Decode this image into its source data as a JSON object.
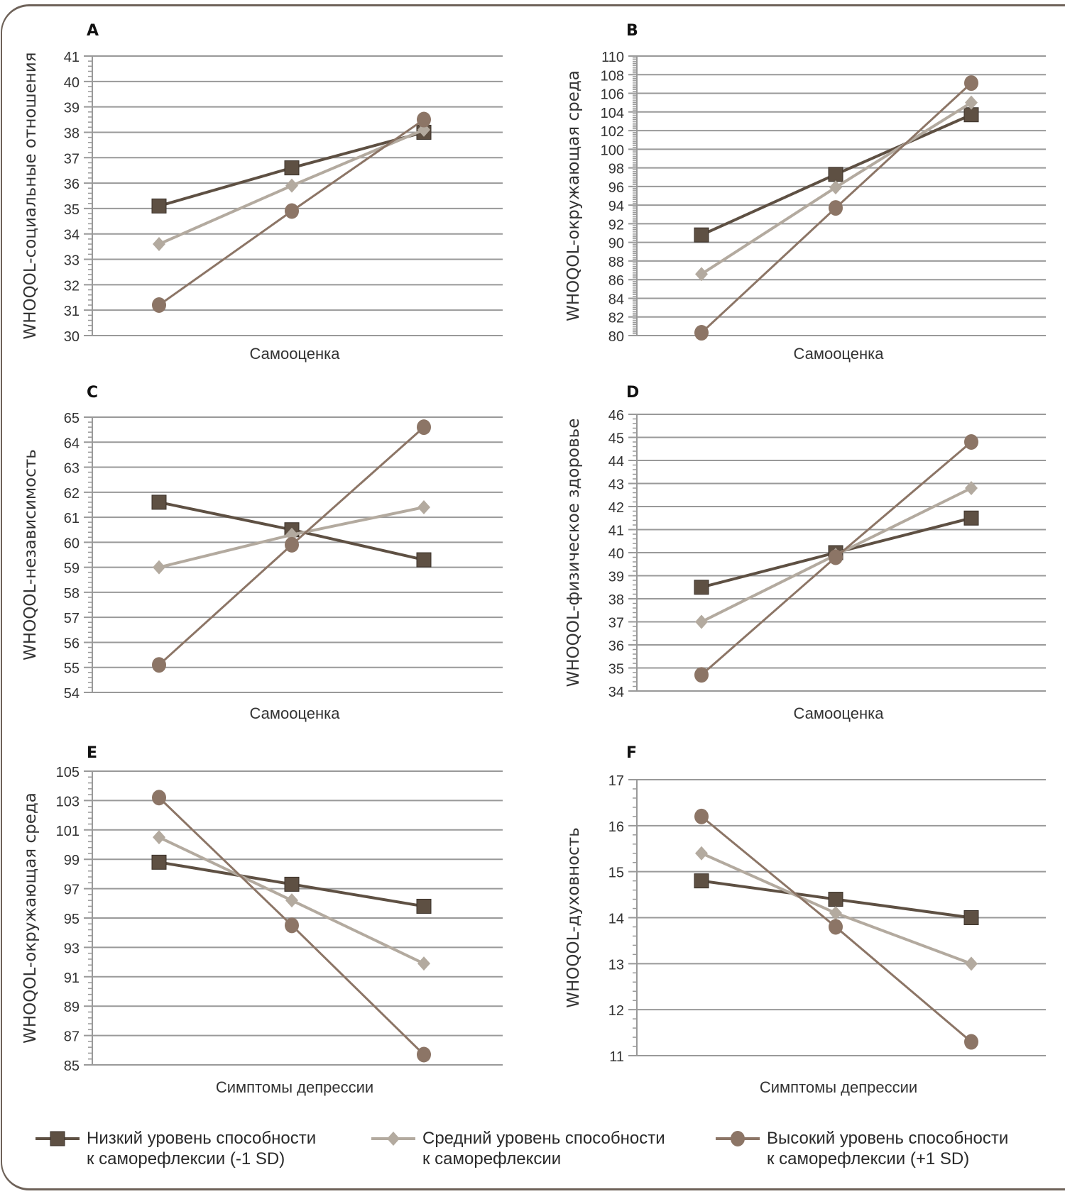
{
  "series_styles": [
    {
      "key": "low",
      "marker": "square",
      "color": "#5e5043",
      "line_width": 4
    },
    {
      "key": "mid",
      "marker": "diamond",
      "color": "#b3aa9f",
      "line_width": 4
    },
    {
      "key": "high",
      "marker": "circle",
      "color": "#8c7566",
      "line_width": 3
    }
  ],
  "legend": {
    "items": [
      {
        "key": "low",
        "label": "Низкий уровень способности\nк саморефлексии (-1 SD)"
      },
      {
        "key": "mid",
        "label": "Средний уровень способности\nк саморефлексии"
      },
      {
        "key": "high",
        "label": "Высокий уровень способности\nк саморефлексии (+1 SD)"
      }
    ]
  },
  "chart_data": [
    {
      "panel": "A",
      "type": "line",
      "title": "A",
      "xlabel": "Самооценка",
      "ylabel": "WHOQOL-социальные отношения",
      "ylim": [
        30,
        41
      ],
      "ystep": 1,
      "minor_per_major": 5,
      "yticks": [
        "30",
        "31",
        "32",
        "33",
        "34",
        "35",
        "36",
        "37",
        "38",
        "39",
        "40",
        "41"
      ],
      "x": [
        1,
        2,
        3
      ],
      "series": [
        {
          "name": "Низкий уровень способности к саморефлексии (-1 SD)",
          "key": "low",
          "values": [
            35.1,
            36.6,
            38.0
          ]
        },
        {
          "name": "Средний уровень способности к саморефлексии",
          "key": "mid",
          "values": [
            33.6,
            35.9,
            38.1
          ]
        },
        {
          "name": "Высокий уровень способности к саморефлексии (+1 SD)",
          "key": "high",
          "values": [
            31.2,
            34.9,
            38.5
          ]
        }
      ]
    },
    {
      "panel": "B",
      "type": "line",
      "title": "B",
      "xlabel": "Самооценка",
      "ylabel": "WHOQOL-окружающая среда",
      "ylim": [
        80,
        110
      ],
      "ystep": 2,
      "minor_per_major": 10,
      "yticks": [
        "80",
        "82",
        "84",
        "86",
        "88",
        "90",
        "92",
        "94",
        "96",
        "98",
        "100",
        "102",
        "104",
        "106",
        "108",
        "110"
      ],
      "x": [
        1,
        2,
        3
      ],
      "series": [
        {
          "name": "Низкий уровень способности к саморефлексии (-1 SD)",
          "key": "low",
          "values": [
            90.8,
            97.3,
            103.7
          ]
        },
        {
          "name": "Средний уровень способности к саморефлексии",
          "key": "mid",
          "values": [
            86.6,
            95.9,
            105.0
          ]
        },
        {
          "name": "Высокий уровень способности к саморефлексии (+1 SD)",
          "key": "high",
          "values": [
            80.3,
            93.7,
            107.1
          ]
        }
      ]
    },
    {
      "panel": "C",
      "type": "line",
      "title": "C",
      "xlabel": "Самооценка",
      "ylabel": "WHOQOL-независимость",
      "ylim": [
        54,
        65
      ],
      "ystep": 1,
      "minor_per_major": 5,
      "yticks": [
        "54",
        "55",
        "56",
        "57",
        "58",
        "59",
        "60",
        "61",
        "62",
        "63",
        "64",
        "65"
      ],
      "x": [
        1,
        2,
        3
      ],
      "series": [
        {
          "name": "Низкий уровень способности к саморефлексии (-1 SD)",
          "key": "low",
          "values": [
            61.6,
            60.5,
            59.3
          ]
        },
        {
          "name": "Средний уровень способности к саморефлексии",
          "key": "mid",
          "values": [
            59.0,
            60.3,
            61.4
          ]
        },
        {
          "name": "Высокий уровень способности к саморефлексии (+1 SD)",
          "key": "high",
          "values": [
            55.1,
            59.9,
            64.6
          ]
        }
      ]
    },
    {
      "panel": "D",
      "type": "line",
      "title": "D",
      "xlabel": "Самооценка",
      "ylabel": "WHOQOL-физическое здоровье",
      "ylim": [
        34,
        46
      ],
      "ystep": 1,
      "minor_per_major": 5,
      "yticks": [
        "34",
        "35",
        "36",
        "37",
        "38",
        "39",
        "40",
        "41",
        "42",
        "43",
        "44",
        "45",
        "46"
      ],
      "x": [
        1,
        2,
        3
      ],
      "series": [
        {
          "name": "Низкий уровень способности к саморефлексии (-1 SD)",
          "key": "low",
          "values": [
            38.5,
            40.0,
            41.5
          ]
        },
        {
          "name": "Средний уровень способности к саморефлексии",
          "key": "mid",
          "values": [
            37.0,
            39.9,
            42.8
          ]
        },
        {
          "name": "Высокий уровень способности к саморефлексии (+1 SD)",
          "key": "high",
          "values": [
            34.7,
            39.8,
            44.8
          ]
        }
      ]
    },
    {
      "panel": "E",
      "type": "line",
      "title": "E",
      "xlabel": "Симптомы депрессии",
      "ylabel": "WHOQOL-окружающая среда",
      "ylim": [
        85,
        105
      ],
      "ystep": 2,
      "minor_per_major": 5,
      "yticks": [
        "85",
        "87",
        "89",
        "91",
        "93",
        "95",
        "97",
        "99",
        "101",
        "103",
        "105"
      ],
      "x": [
        1,
        2,
        3
      ],
      "series": [
        {
          "name": "Низкий уровень способности к саморефлексии (-1 SD)",
          "key": "low",
          "values": [
            98.8,
            97.3,
            95.8
          ]
        },
        {
          "name": "Средний уровень способности к саморефлексии",
          "key": "mid",
          "values": [
            100.5,
            96.2,
            91.9
          ]
        },
        {
          "name": "Высокий уровень способности к саморефлексии (+1 SD)",
          "key": "high",
          "values": [
            103.2,
            94.5,
            85.7
          ]
        }
      ]
    },
    {
      "panel": "F",
      "type": "line",
      "title": "F",
      "xlabel": "Симптомы депрессии",
      "ylabel": "WHOQOL-духовность",
      "ylim": [
        11,
        17
      ],
      "ystep": 1,
      "minor_per_major": 5,
      "yticks": [
        "11",
        "12",
        "13",
        "14",
        "15",
        "16",
        "17"
      ],
      "x": [
        1,
        2,
        3
      ],
      "series": [
        {
          "name": "Низкий уровень способности к саморефлексии (-1 SD)",
          "key": "low",
          "values": [
            14.8,
            14.4,
            14.0
          ]
        },
        {
          "name": "Средний уровень способности к саморефлексии",
          "key": "mid",
          "values": [
            15.4,
            14.1,
            13.0
          ]
        },
        {
          "name": "Высокий уровень способности к саморефлексии (+1 SD)",
          "key": "high",
          "values": [
            16.2,
            13.8,
            11.3
          ]
        }
      ]
    }
  ]
}
